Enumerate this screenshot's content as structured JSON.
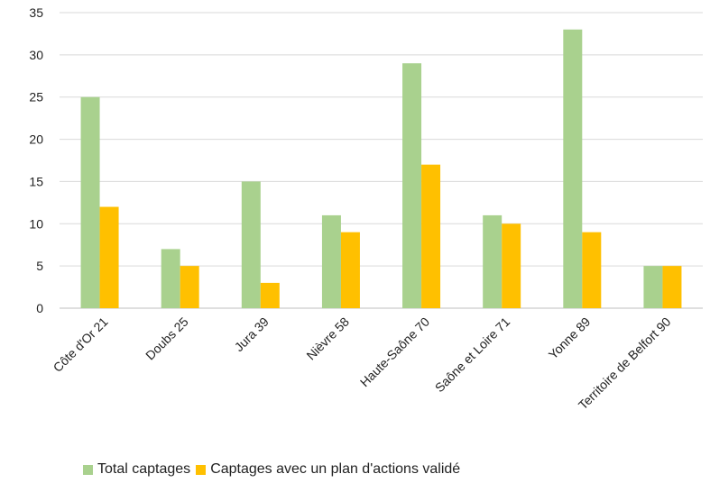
{
  "chart_data": {
    "type": "bar",
    "categories": [
      "Côte d'Or 21",
      "Doubs 25",
      "Jura 39",
      "Nièvre 58",
      "Haute-Saône 70",
      "Saône et Loire 71",
      "Yonne 89",
      "Territoire de Belfort 90"
    ],
    "series": [
      {
        "name": "Total captages",
        "values": [
          25,
          7,
          15,
          11,
          29,
          11,
          33,
          5
        ],
        "color": "#a9d18e"
      },
      {
        "name": "Captages avec un plan d'actions validé",
        "values": [
          12,
          5,
          3,
          9,
          17,
          10,
          9,
          5
        ],
        "color": "#ffc000"
      }
    ],
    "yticks": [
      "0",
      "5",
      "10",
      "15",
      "20",
      "25",
      "30",
      "35"
    ],
    "ylim": [
      0,
      35
    ],
    "grid": true,
    "legend_position": "bottom-left",
    "title": "",
    "xlabel": "",
    "ylabel": ""
  }
}
